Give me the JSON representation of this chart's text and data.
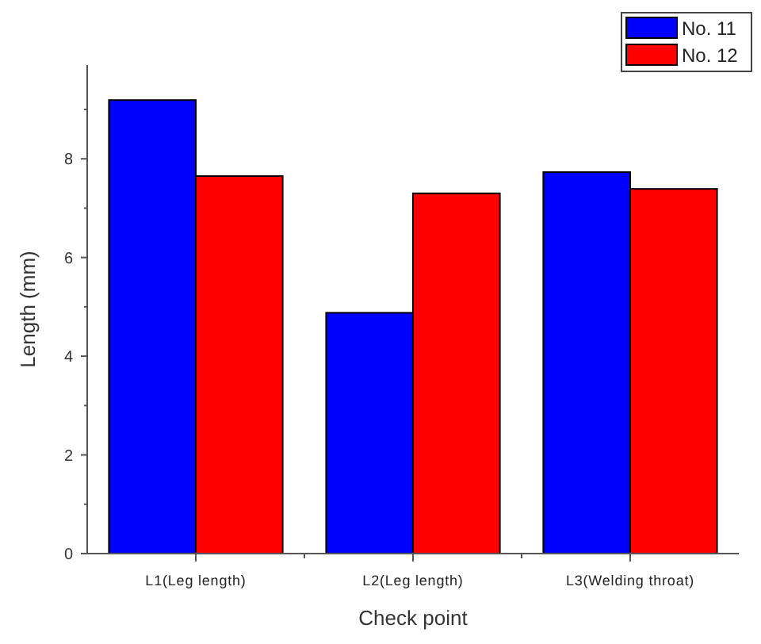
{
  "chart_data": {
    "type": "bar",
    "xlabel": "Check point",
    "ylabel": "Length (mm)",
    "categories": [
      "L1(Leg length)",
      "L2(Leg length)",
      "L3(Welding throat)"
    ],
    "series": [
      {
        "name": "No. 11",
        "color": "#0000ff",
        "values": [
          9.19,
          4.88,
          7.73
        ]
      },
      {
        "name": "No. 12",
        "color": "#ff0000",
        "values": [
          7.65,
          7.3,
          7.39
        ]
      }
    ],
    "ylim": [
      0,
      9.9
    ],
    "yticks": [
      0,
      {
        "value": 1,
        "label": null
      },
      2,
      {
        "value": 3,
        "label": null
      },
      4,
      {
        "value": 5,
        "label": null
      },
      6,
      {
        "value": 7,
        "label": null
      },
      8,
      {
        "value": 9,
        "label": null
      }
    ],
    "grid": false,
    "legend": "top right"
  }
}
